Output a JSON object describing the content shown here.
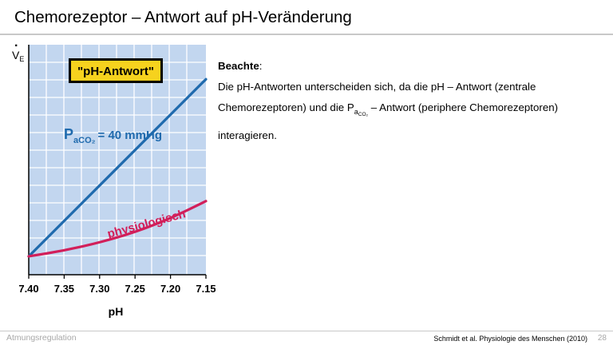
{
  "slide": {
    "title": "Chemorezeptor – Antwort auf pH-Veränderung",
    "y_label_main": "V",
    "y_label_sub": "E",
    "note_heading": "Beachte",
    "note_colon": ":",
    "note_line1": "Die pH-Antworten unterscheiden sich, da die pH – Antwort (zentrale",
    "note_line2_a": "Chemorezeptoren) und die P",
    "note_line2_sub": "a",
    "note_line2_sub2": "CO₂",
    "note_line2_b": " – Antwort (periphere Chemorezeptoren)",
    "note_line3": "interagieren.",
    "footer_left": "Atmungsregulation",
    "footer_citation": "Schmidt et al. Physiologie des Menschen (2010)",
    "page_number": "28"
  },
  "chart_data": {
    "type": "line",
    "box_label": "\"pH-Antwort\"",
    "xlabel": "pH",
    "ylabel": "V̇E",
    "x_ticks": [
      "7.40",
      "7.35",
      "7.30",
      "7.25",
      "7.20",
      "7.15"
    ],
    "x_reversed": true,
    "xlim": [
      7.4,
      7.15
    ],
    "series": [
      {
        "name": "PaCO₂ = 40 mmHg",
        "label_main": "P",
        "label_sub": "aCO₂",
        "label_rest": "= 40 mmHg",
        "color": "#1f6aad",
        "x": [
          7.4,
          7.15
        ],
        "y": [
          0.08,
          0.85
        ]
      },
      {
        "name": "physiologisch",
        "label_main": "physiologisch",
        "color": "#d21f5a",
        "x": [
          7.4,
          7.35,
          7.3,
          7.25,
          7.2,
          7.15
        ],
        "y": [
          0.08,
          0.105,
          0.14,
          0.185,
          0.245,
          0.32
        ]
      }
    ],
    "colors": {
      "plot_bg": "#c2d6ef",
      "axis": "#000000"
    }
  }
}
